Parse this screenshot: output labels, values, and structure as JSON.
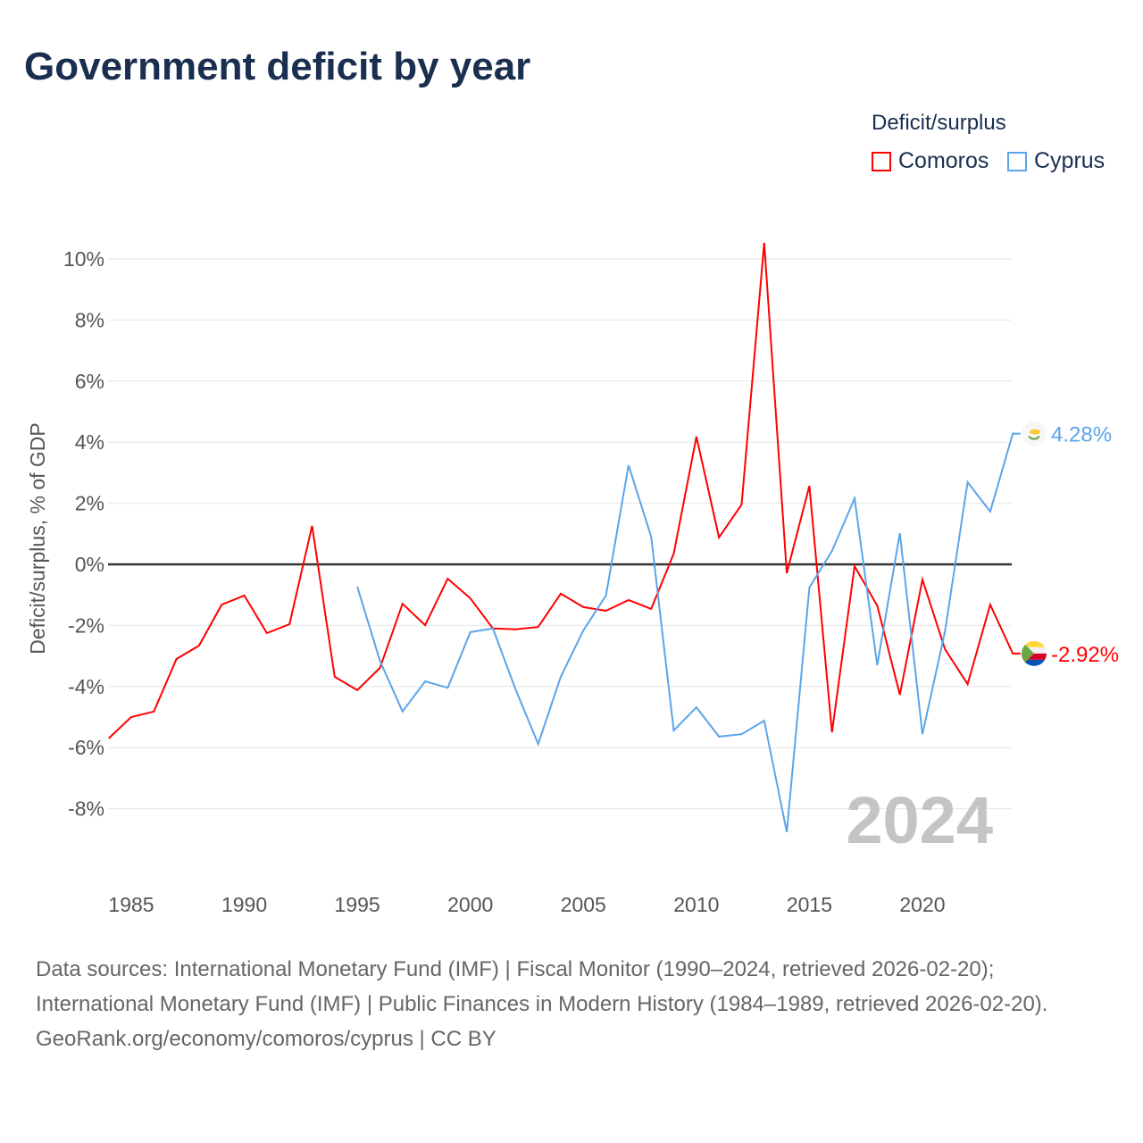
{
  "title": "Government deficit by year",
  "legend": {
    "title": "Deficit/surplus",
    "items": [
      {
        "name": "Comoros",
        "color": "#ff0000"
      },
      {
        "name": "Cyprus",
        "color": "#5aa5ea"
      }
    ]
  },
  "chart_data": {
    "type": "line",
    "title": "Government deficit by year",
    "xlabel": "",
    "ylabel": "Deficit/surplus, % of GDP",
    "xlim": [
      1984,
      2024
    ],
    "ylim": [
      -9.5,
      10.5
    ],
    "x_ticks": [
      "1985",
      "1990",
      "1995",
      "2000",
      "2005",
      "2010",
      "2015",
      "2020"
    ],
    "y_ticks": [
      {
        "v": 10,
        "label": "10%"
      },
      {
        "v": 8,
        "label": "8%"
      },
      {
        "v": 6,
        "label": "6%"
      },
      {
        "v": 4,
        "label": "4%"
      },
      {
        "v": 2,
        "label": "2%"
      },
      {
        "v": 0,
        "label": "0%"
      },
      {
        "v": -2,
        "label": "-2%"
      },
      {
        "v": -4,
        "label": "-4%"
      },
      {
        "v": -6,
        "label": "-6%"
      },
      {
        "v": -8,
        "label": "-8%"
      }
    ],
    "grid": true,
    "legend_position": "top-right",
    "year_watermark": "2024",
    "series": [
      {
        "name": "Comoros",
        "color": "#ff0000",
        "end_label": "-2.92%",
        "start_year": 1984,
        "values": [
          -5.7,
          -5.0,
          -4.82,
          -3.1,
          -2.66,
          -1.32,
          -1.02,
          -2.25,
          -1.96,
          1.26,
          -3.68,
          -4.12,
          -3.39,
          -1.29,
          -1.99,
          -0.47,
          -1.11,
          -2.1,
          -2.13,
          -2.05,
          -0.96,
          -1.4,
          -1.52,
          -1.17,
          -1.46,
          0.35,
          4.18,
          0.88,
          1.96,
          10.53,
          -0.29,
          2.57,
          -5.5,
          -0.06,
          -1.35,
          -4.27,
          -0.5,
          -2.78,
          -3.92,
          -1.32,
          -2.92
        ]
      },
      {
        "name": "Cyprus",
        "color": "#5aa5ea",
        "end_label": "4.28%",
        "start_year": 1995,
        "values": [
          -0.73,
          -3.16,
          -4.82,
          -3.83,
          -4.04,
          -2.22,
          -2.1,
          -4.09,
          -5.88,
          -3.68,
          -2.16,
          -1.02,
          3.25,
          0.91,
          -5.44,
          -4.68,
          -5.64,
          -5.56,
          -5.12,
          -8.77,
          -0.76,
          0.44,
          2.16,
          -3.3,
          1.02,
          -5.56,
          -2.19,
          2.69,
          1.73,
          4.28
        ]
      }
    ]
  },
  "footer": {
    "line1": "Data sources: International Monetary Fund (IMF) | Fiscal Monitor (1990–2024, retrieved 2026-02-20); International Monetary Fund (IMF) | Public Finances in Modern History (1984–1989, retrieved 2026-02-20).",
    "line2": "GeoRank.org/economy/comoros/cyprus | CC BY"
  }
}
